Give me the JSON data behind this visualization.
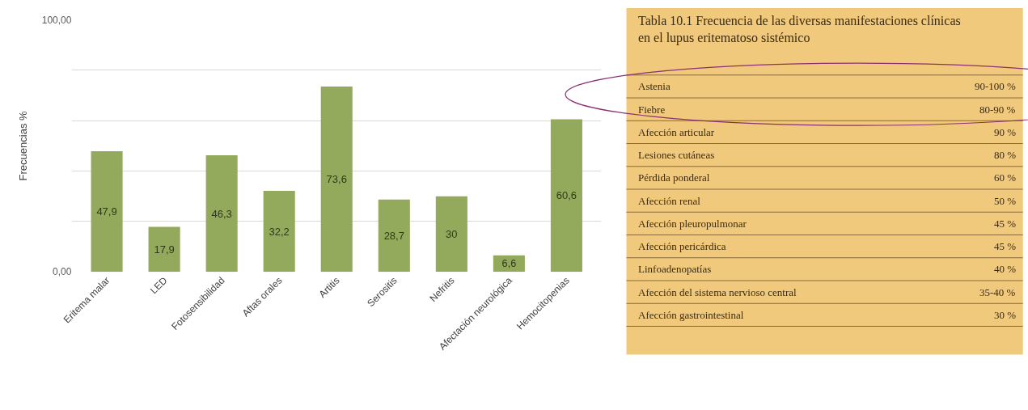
{
  "chart_data": [
    {
      "type": "bar",
      "ylabel": "Frecuencias %",
      "categories": [
        "Eritema malar",
        "LED",
        "Fotosensibilidad",
        "Aftas orales",
        "Artitis",
        "Serositis",
        "Nefritis",
        "Afectación neurológica",
        "Hemocitopenias"
      ],
      "values": [
        47.9,
        17.9,
        46.3,
        32.2,
        73.6,
        28.7,
        30,
        6.6,
        60.6
      ],
      "value_labels": [
        "47,9",
        "17,9",
        "46,3",
        "32,2",
        "73,6",
        "28,7",
        "30",
        "6,6",
        "60,6"
      ],
      "color": "#93aa5c",
      "ylim": [
        0,
        100
      ],
      "yticks": [
        {
          "value": 0,
          "label": "0,00"
        },
        {
          "value": 20,
          "label": null
        },
        {
          "value": 40,
          "label": null
        },
        {
          "value": 60,
          "label": null
        },
        {
          "value": 80,
          "label": null
        },
        {
          "value": 100,
          "label": "100,00"
        }
      ],
      "grid": "y"
    },
    {
      "type": "other",
      "title": "Tabla 10.1 Frecuencia de las diversas manifestaciones clínicas en el lupus eritematoso sistémico",
      "annotations": [
        "Astenia",
        "90-100 %",
        "Fiebre",
        "80-90 %",
        "Afección articular",
        "90 %",
        "Lesiones cutáneas",
        "80 %",
        "Pérdida ponderal",
        "60 %",
        "Afección renal",
        "50 %",
        "Afección pleuropulmonar",
        "45 %",
        "Afección pericárdica",
        "45 %",
        "Linfoadenopatías",
        "40 %",
        "Afección del sistema nervioso central",
        "35-40 %",
        "Afección gastrointestinal",
        "30 %"
      ]
    }
  ]
}
